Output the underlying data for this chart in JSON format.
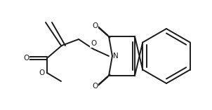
{
  "bg_color": "#ffffff",
  "line_color": "#1a1a1a",
  "line_width": 1.4,
  "figsize": [
    3.02,
    1.57
  ],
  "dpi": 100,
  "xlim": [
    0,
    302
  ],
  "ylim": [
    0,
    157
  ],
  "font_size": 7.5
}
